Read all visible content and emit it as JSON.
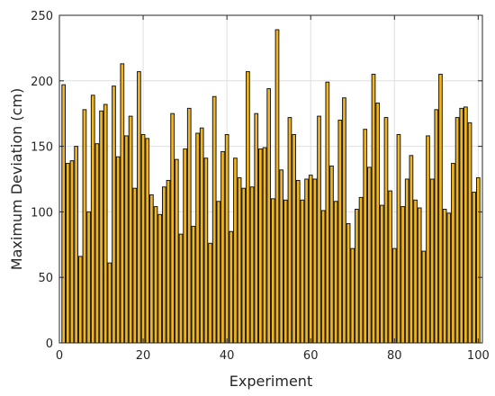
{
  "chart_data": {
    "type": "bar",
    "xlabel": "Experiment",
    "ylabel": "Maximum Deviation (cm)",
    "xlim": [
      0,
      101
    ],
    "ylim": [
      0,
      250
    ],
    "xticks": [
      0,
      20,
      40,
      60,
      80,
      100
    ],
    "yticks": [
      0,
      50,
      100,
      150,
      200,
      250
    ],
    "grid": true,
    "bar_color": "#f2b51d",
    "edge_color": "#1a1a1a",
    "x": [
      1,
      2,
      3,
      4,
      5,
      6,
      7,
      8,
      9,
      10,
      11,
      12,
      13,
      14,
      15,
      16,
      17,
      18,
      19,
      20,
      21,
      22,
      23,
      24,
      25,
      26,
      27,
      28,
      29,
      30,
      31,
      32,
      33,
      34,
      35,
      36,
      37,
      38,
      39,
      40,
      41,
      42,
      43,
      44,
      45,
      46,
      47,
      48,
      49,
      50,
      51,
      52,
      53,
      54,
      55,
      56,
      57,
      58,
      59,
      60,
      61,
      62,
      63,
      64,
      65,
      66,
      67,
      68,
      69,
      70,
      71,
      72,
      73,
      74,
      75,
      76,
      77,
      78,
      79,
      80,
      81,
      82,
      83,
      84,
      85,
      86,
      87,
      88,
      89,
      90,
      91,
      92,
      93,
      94,
      95,
      96,
      97,
      98,
      99,
      100
    ],
    "values": [
      197,
      137,
      139,
      150,
      66,
      178,
      100,
      189,
      152,
      177,
      182,
      61,
      196,
      142,
      213,
      158,
      173,
      118,
      207,
      159,
      156,
      113,
      104,
      98,
      119,
      124,
      175,
      140,
      83,
      148,
      179,
      89,
      160,
      164,
      141,
      76,
      188,
      108,
      146,
      159,
      85,
      141,
      126,
      118,
      207,
      119,
      175,
      148,
      149,
      194,
      110,
      239,
      132,
      109,
      172,
      159,
      124,
      109,
      125,
      128,
      125,
      173,
      101,
      199,
      135,
      108,
      170,
      187,
      91,
      72,
      102,
      111,
      163,
      134,
      205,
      183,
      105,
      172,
      116,
      72,
      159,
      104,
      125,
      143,
      109,
      103,
      70,
      158,
      125,
      178,
      205,
      102,
      99,
      137,
      172,
      179,
      180,
      168,
      115,
      126
    ]
  }
}
